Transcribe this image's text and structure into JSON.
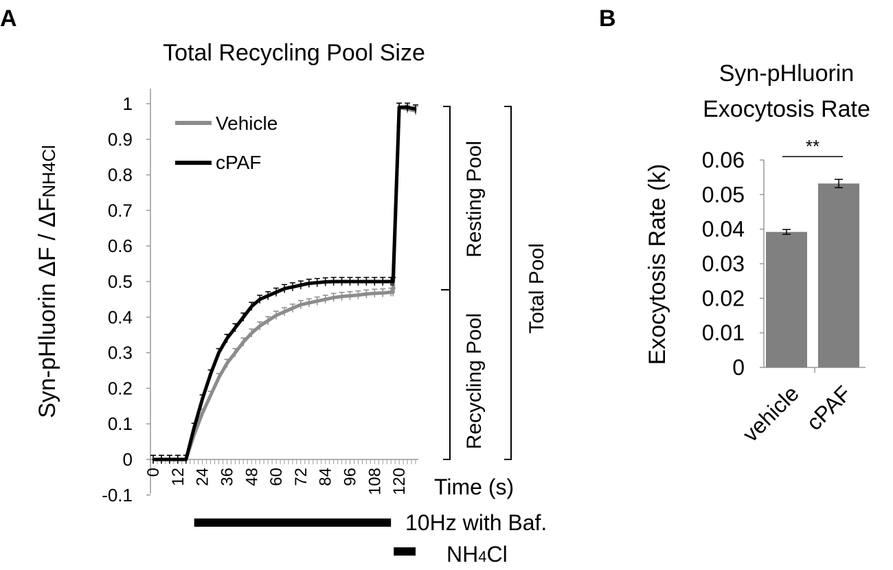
{
  "panel_a": {
    "letter": "A",
    "title": "Total Recycling Pool Size"
  },
  "panel_b": {
    "letter": "B",
    "title_line1": "Syn-pHluorin",
    "title_line2": "Exocytosis Rate"
  },
  "chart_data": [
    {
      "type": "line",
      "title": "Total Recycling Pool Size",
      "ylabel": "Syn-pHluorin ΔF / ΔFNH4Cl",
      "ylabel_main": "Syn-pHluorin ΔF / ΔF",
      "ylabel_sub": "NH4Cl",
      "xlabel": "Time (s)",
      "xlim": [
        0,
        128
      ],
      "ylim": [
        -0.1,
        1.0
      ],
      "x_ticks": [
        "0",
        "12",
        "24",
        "36",
        "48",
        "60",
        "72",
        "84",
        "96",
        "108",
        "120"
      ],
      "y_ticks": [
        "-0.1",
        "0",
        "0.1",
        "0.2",
        "0.3",
        "0.4",
        "0.5",
        "0.6",
        "0.7",
        "0.8",
        "0.9",
        "1"
      ],
      "legend_position": "top-left",
      "series": [
        {
          "name": "Vehicle",
          "color": "#8c8c8c",
          "x": [
            0,
            4,
            8,
            12,
            16,
            20,
            24,
            28,
            32,
            36,
            40,
            44,
            48,
            52,
            56,
            60,
            64,
            68,
            72,
            76,
            80,
            84,
            88,
            92,
            96,
            100,
            104,
            108,
            112,
            116,
            117,
            120,
            124,
            128
          ],
          "y": [
            0.0,
            0.0,
            0.0,
            0.0,
            0.0,
            0.07,
            0.13,
            0.18,
            0.23,
            0.27,
            0.3,
            0.33,
            0.355,
            0.375,
            0.39,
            0.405,
            0.415,
            0.425,
            0.435,
            0.44,
            0.445,
            0.45,
            0.455,
            0.458,
            0.46,
            0.462,
            0.465,
            0.467,
            0.468,
            0.47,
            0.47,
            0.99,
            0.985,
            0.98
          ]
        },
        {
          "name": "cPAF",
          "color": "#000000",
          "x": [
            0,
            4,
            8,
            12,
            16,
            20,
            24,
            28,
            32,
            36,
            40,
            44,
            48,
            52,
            56,
            60,
            64,
            68,
            72,
            76,
            80,
            84,
            88,
            92,
            96,
            100,
            104,
            108,
            112,
            116,
            117,
            120,
            124,
            128
          ],
          "y": [
            0.0,
            0.0,
            0.0,
            0.0,
            0.0,
            0.09,
            0.17,
            0.24,
            0.3,
            0.34,
            0.37,
            0.4,
            0.43,
            0.45,
            0.46,
            0.47,
            0.48,
            0.485,
            0.49,
            0.495,
            0.497,
            0.499,
            0.5,
            0.5,
            0.5,
            0.5,
            0.5,
            0.5,
            0.5,
            0.5,
            0.5,
            0.99,
            0.99,
            0.985
          ]
        }
      ],
      "annotations": {
        "resting_pool": "Resting Pool",
        "recycling_pool": "Recycling Pool",
        "total_pool": "Total Pool",
        "stim_label": "10Hz with Baf.",
        "stim_start": 20,
        "stim_end": 116,
        "nh4_label_main": "NH",
        "nh4_label_sub": "4",
        "nh4_label_tail": "Cl",
        "nh4_start": 116,
        "nh4_end": 128
      }
    },
    {
      "type": "bar",
      "title": "Syn-pHluorin Exocytosis Rate",
      "categories": [
        "vehicle",
        "cPAF"
      ],
      "values": [
        0.0392,
        0.0532
      ],
      "errors": [
        0.0007,
        0.0012
      ],
      "ylabel": "Exocytosis Rate (k)",
      "ylim": [
        0,
        0.06
      ],
      "y_ticks": [
        "0",
        "0.01",
        "0.02",
        "0.03",
        "0.04",
        "0.05",
        "0.06"
      ],
      "bar_color": "#808080",
      "significance": "**"
    }
  ]
}
